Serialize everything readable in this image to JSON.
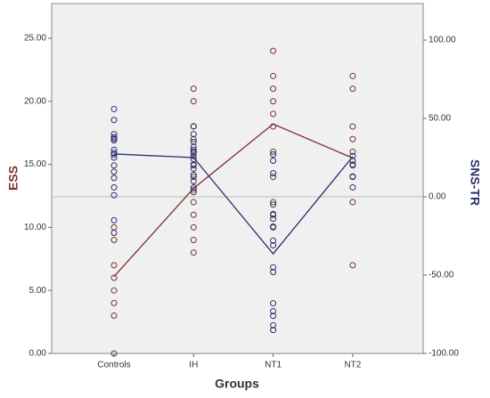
{
  "chart_data": {
    "type": "scatter",
    "xlabel": "Groups",
    "ylabel": "ESS",
    "y2label": "SNS-TR",
    "categories": [
      "Controls",
      "IH",
      "NT1",
      "NT2"
    ],
    "ylim": [
      0,
      27.75
    ],
    "yticks": [
      {
        "value": 0,
        "label": "0.00"
      },
      {
        "value": 5,
        "label": "5.00"
      },
      {
        "value": 10,
        "label": "10.00"
      },
      {
        "value": 15,
        "label": "15.00"
      },
      {
        "value": 20,
        "label": "20.00"
      },
      {
        "value": 25,
        "label": "25.00"
      }
    ],
    "y2lim": [
      -100,
      123.3
    ],
    "y2ticks": [
      {
        "value": -100,
        "label": "-100.00"
      },
      {
        "value": -50,
        "label": "-50.00"
      },
      {
        "value": 0,
        "label": "0.00"
      },
      {
        "value": 50,
        "label": "50.00"
      },
      {
        "value": 100,
        "label": "100.00"
      }
    ],
    "reference_line": {
      "axis": "y2",
      "value": 0,
      "color": "#a9c4b4"
    },
    "series": [
      {
        "axis": "y",
        "color": "#7d2f2f",
        "values": [
          6.1,
          13.1,
          18.2,
          15.5
        ],
        "points": [
          [
            0,
            3,
            4,
            5,
            6,
            7,
            9,
            10
          ],
          [
            8,
            9,
            10,
            11,
            12,
            13,
            14,
            15,
            16,
            17,
            18,
            20,
            21
          ],
          [
            10,
            11,
            12,
            14,
            16,
            18,
            19,
            20,
            21,
            22,
            24
          ],
          [
            7,
            12,
            14,
            15,
            16,
            17,
            18,
            21,
            22
          ]
        ]
      },
      {
        "axis": "y2",
        "color": "#2b2e6e",
        "values": [
          27.3,
          25,
          -36.4,
          25.6
        ],
        "points": [
          [
            56,
            49,
            40,
            38,
            37,
            36,
            30,
            28,
            27,
            25,
            20,
            16,
            12,
            6,
            1,
            -15,
            -23
          ],
          [
            45,
            40,
            35,
            32,
            30,
            28,
            26,
            24,
            20,
            18,
            14,
            10,
            6,
            3
          ],
          [
            27,
            23,
            15,
            -5,
            -11,
            -14,
            -19,
            -28,
            -31,
            -45,
            -48,
            -68,
            -73,
            -76,
            -82,
            -85
          ],
          [
            26,
            23,
            20,
            13,
            6
          ]
        ]
      }
    ]
  }
}
